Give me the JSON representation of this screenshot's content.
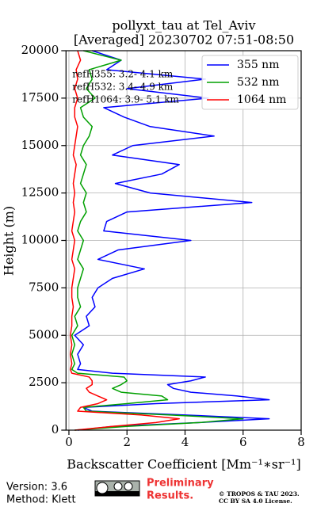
{
  "chart_data": {
    "type": "line",
    "title": "pollyxt_tau at Tel_Aviv",
    "subtitle": "[Averaged] 20230702 07:51-08:50",
    "x_label": "Backscatter Coefficient [Mm⁻¹∗sr⁻¹]",
    "y_label": "Height (m)",
    "heights": [
      0,
      200,
      400,
      600,
      800,
      1000,
      1200,
      1400,
      1600,
      1800,
      2000,
      2200,
      2400,
      2600,
      2800,
      3000,
      3200,
      3500,
      4000,
      4500,
      5000,
      5500,
      6000,
      6500,
      7000,
      7500,
      8000,
      8500,
      9000,
      9500,
      10000,
      10500,
      11000,
      11500,
      12000,
      12500,
      13000,
      13500,
      14000,
      14500,
      15000,
      15500,
      16000,
      16500,
      17000,
      17500,
      18000,
      18500,
      19000,
      19500,
      20000
    ],
    "series": [
      {
        "name": "355 nm",
        "color": "#0000ff",
        "values": [
          0.3,
          1.5,
          4.5,
          6.9,
          4.0,
          0.8,
          0.5,
          3.0,
          6.9,
          5.8,
          4.2,
          3.6,
          3.4,
          4.2,
          4.7,
          1.5,
          0.3,
          0.4,
          0.3,
          0.5,
          0.2,
          0.7,
          0.6,
          0.9,
          0.8,
          1.0,
          1.5,
          2.6,
          1.0,
          1.7,
          4.2,
          1.2,
          1.3,
          2.0,
          6.3,
          2.8,
          1.6,
          3.2,
          3.8,
          1.5,
          2.2,
          5.0,
          2.8,
          1.9,
          1.2,
          4.8,
          2.0,
          4.7,
          1.3,
          1.8,
          0.8
        ]
      },
      {
        "name": "532 nm",
        "color": "#00a000",
        "values": [
          0.2,
          2.0,
          4.5,
          6.0,
          3.5,
          0.6,
          0.5,
          2.0,
          3.4,
          3.2,
          1.8,
          1.5,
          1.8,
          2.0,
          1.9,
          0.3,
          0.1,
          0.2,
          0.1,
          0.2,
          0.1,
          0.3,
          0.2,
          0.4,
          0.3,
          0.3,
          0.4,
          0.5,
          0.3,
          0.4,
          0.5,
          0.3,
          0.4,
          0.6,
          0.5,
          0.6,
          0.4,
          0.5,
          0.6,
          0.4,
          0.5,
          0.7,
          0.8,
          0.5,
          0.4,
          0.9,
          0.6,
          0.8,
          0.7,
          1.8,
          0.5
        ]
      },
      {
        "name": "1064 nm",
        "color": "#ff0000",
        "values": [
          0.2,
          1.5,
          3.0,
          3.8,
          2.5,
          0.3,
          0.4,
          1.0,
          1.3,
          1.0,
          0.7,
          0.6,
          0.8,
          0.8,
          0.7,
          0.1,
          0.05,
          0.1,
          0.05,
          0.1,
          0.05,
          0.1,
          0.1,
          0.15,
          0.1,
          0.1,
          0.15,
          0.2,
          0.1,
          0.15,
          0.2,
          0.1,
          0.15,
          0.2,
          0.15,
          0.2,
          0.15,
          0.2,
          0.25,
          0.15,
          0.2,
          0.25,
          0.3,
          0.2,
          0.2,
          0.3,
          0.2,
          0.3,
          0.25,
          0.4,
          0.3
        ]
      }
    ],
    "xlim": [
      -0.1,
      8
    ],
    "ylim": [
      0,
      20000
    ],
    "xticks": [
      0,
      2,
      4,
      6,
      8
    ],
    "yticks": [
      0,
      2500,
      5000,
      7500,
      10000,
      12500,
      15000,
      17500,
      20000
    ],
    "grid": true,
    "legend": "upper right",
    "annotations": [
      "refH355:  3.2- 4.1 km",
      "refH532:  3.4- 4.9 km",
      "refH1064:  3.9- 5.1 km"
    ]
  },
  "footer": {
    "version": "Version: 3.6",
    "method": "Method: Klett",
    "preliminary": [
      "Preliminary",
      "Results."
    ],
    "copyright": [
      "© TROPOS & TAU 2023.",
      "CC BY SA 4.0 License."
    ]
  }
}
